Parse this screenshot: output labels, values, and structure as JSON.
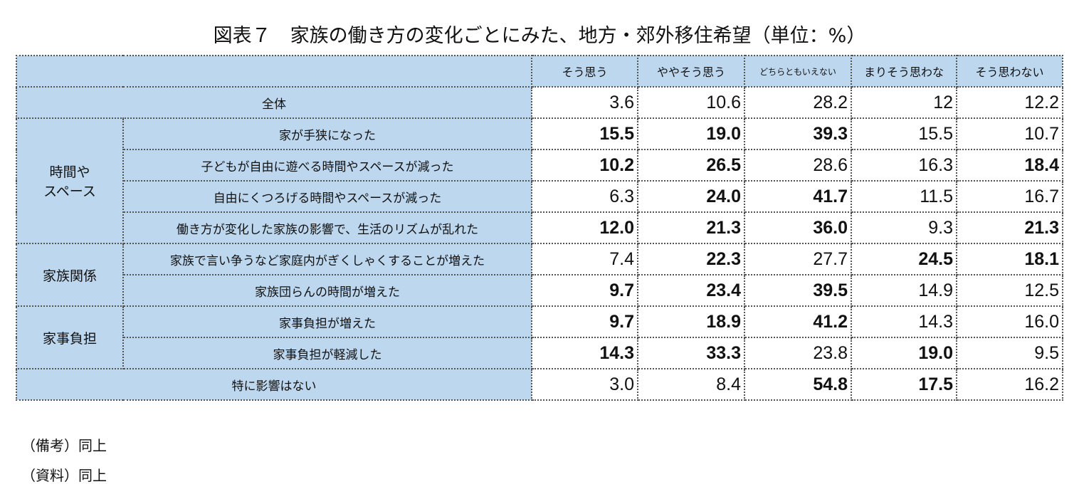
{
  "title": "図表７　家族の働き方の変化ごとにみた、地方・郊外移住希望（単位：%）",
  "columns": [
    "そう思う",
    "ややそう思う",
    "どちらともいえない",
    "まりそう思わな",
    "そう思わない"
  ],
  "rows": [
    {
      "group": "全体",
      "label": "",
      "values": [
        "3.6",
        "10.6",
        "28.2",
        "12",
        "12.2"
      ],
      "bold": [
        0,
        0,
        0,
        0,
        0
      ]
    },
    {
      "group": "時間や\nスペース",
      "label": "家が手狭になった",
      "values": [
        "15.5",
        "19.0",
        "39.3",
        "15.5",
        "10.7"
      ],
      "bold": [
        1,
        1,
        1,
        0,
        0
      ]
    },
    {
      "group": "",
      "label": "子どもが自由に遊べる時間やスペースが減った",
      "values": [
        "10.2",
        "26.5",
        "28.6",
        "16.3",
        "18.4"
      ],
      "bold": [
        1,
        1,
        0,
        0,
        1
      ]
    },
    {
      "group": "",
      "label": "自由にくつろげる時間やスペースが減った",
      "values": [
        "6.3",
        "24.0",
        "41.7",
        "11.5",
        "16.7"
      ],
      "bold": [
        0,
        1,
        1,
        0,
        0
      ]
    },
    {
      "group": "",
      "label": "働き方が変化した家族の影響で、生活のリズムが乱れた",
      "values": [
        "12.0",
        "21.3",
        "36.0",
        "9.3",
        "21.3"
      ],
      "bold": [
        1,
        1,
        1,
        0,
        1
      ]
    },
    {
      "group": "家族関係",
      "label": "家族で言い争うなど家庭内がぎくしゃくすることが増えた",
      "values": [
        "7.4",
        "22.3",
        "27.7",
        "24.5",
        "18.1"
      ],
      "bold": [
        0,
        1,
        0,
        1,
        1
      ]
    },
    {
      "group": "",
      "label": "家族団らんの時間が増えた",
      "values": [
        "9.7",
        "23.4",
        "39.5",
        "14.9",
        "12.5"
      ],
      "bold": [
        1,
        1,
        1,
        0,
        0
      ]
    },
    {
      "group": "家事負担",
      "label": "家事負担が増えた",
      "values": [
        "9.7",
        "18.9",
        "41.2",
        "14.3",
        "16.0"
      ],
      "bold": [
        1,
        1,
        1,
        0,
        0
      ]
    },
    {
      "group": "",
      "label": "家事負担が軽減した",
      "values": [
        "14.3",
        "33.3",
        "23.8",
        "19.0",
        "9.5"
      ],
      "bold": [
        1,
        1,
        0,
        1,
        0
      ]
    },
    {
      "group": "特に影響はない",
      "label": "",
      "values": [
        "3.0",
        "8.4",
        "54.8",
        "17.5",
        "16.2"
      ],
      "bold": [
        0,
        0,
        1,
        1,
        0
      ]
    }
  ],
  "notes": [
    "（備考）同上",
    "（資料）同上"
  ]
}
